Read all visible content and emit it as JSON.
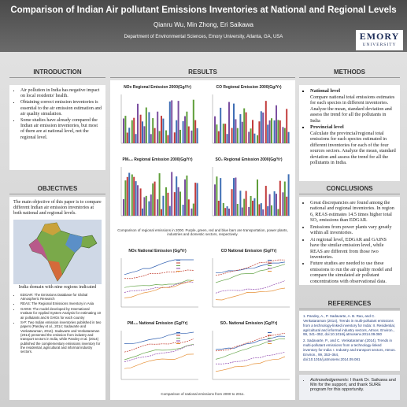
{
  "header": {
    "title": "Comparison of Indian Air pollutant Emissions Inventories at National and Regional Levels",
    "authors": "Qianru Wu, Min Zhong, Eri Saikawa",
    "affiliation": "Department of Environmental Sciences, Emory University, Atlanta, GA, USA",
    "logo": [
      "EMORY",
      "UNIVERSITY"
    ]
  },
  "introduction": {
    "heading": "INTRODUCTION",
    "bullets": [
      "Air pollution in India has negative impact on local residents' health.",
      "Obtaining correct emission inventories is essential to the air emission estimation and air quality simulation.",
      "Some studies have already compared the Indian air emission inventories, but most of them are at national level, not the regional level."
    ]
  },
  "objectives": {
    "heading": "OBJECTIVES",
    "text": "The main objective of this paper is to compare different Indian air emission inventories at both national and regional levels.",
    "map_caption": "India domain with nine regions indicated",
    "bullets": [
      "EDGAR: The Emissions Database for Global Atmospheric Research",
      "REAS: The Regional Emissions Inventory in Asia",
      "GAINS: The model developed by International Institute for Applied System Analysis for estimating 10 air pollutants and 6 GHGs for each country",
      "S-P: Two Indian emission inventories published in two papers (Pandey et al., 2014; Sadavarte and Venkataraman, 2014). Sadavarte and Venkataraman (2014) presented the emission from industry and transport sectors in India, while Pandey et al. (2014) published the complementary emissions inventory for the residential, agricultural and informal industry sectors."
    ]
  },
  "results": {
    "heading": "RESULTS",
    "regional_titles": [
      "NOx Regional Emission 2000(Gg/Yr)",
      "CO Regional Emission 2000(Gg/Yr)",
      "PM₂.₅ Regional Emission 2000(Gg/Yr)",
      "SO₂ Regional Emission 2000(Gg/Yr)"
    ],
    "regional_caption": "Comparison of regional emissions in 2000. Purple, green, red and blue bars are transportation, power plants, industries and domestic sectors, respectively.",
    "national_titles": [
      "NOx National Emission (Gg/Yr)",
      "CO National Emission (Gg/Yr)",
      "PM₂.₅ National Emission (Gg/Yr)",
      "SO₂ National Emission (Gg/Yr)"
    ],
    "national_caption": "Comparison of national emissions from 2000 to 2011."
  },
  "methods": {
    "heading": "METHODS",
    "national_heading": "National level",
    "national_text": "Compare national total emissions estimates for each species in different inventories. Analyze the mean, standard deviation and assess the trend for all the pollutants in India",
    "provincial_heading": "Provincial level",
    "provincial_text": "Calculate the provincial/regional total emissions for each species estimated in different inventories for each of the four sources sectors. Analyze the mean, standard deviation and assess the trend for all the pollutants in India."
  },
  "conclusions": {
    "heading": "CONCLUSIONS",
    "bullets": [
      "Great discrepancies are found among the national and regional inventories. In region 6, REAS estimates 14.5 times higher total SO₂ emissions than EDGAR.",
      "Emissions from power plants vary greatly within all inventories.",
      "At regional level, EDGAR and GAINS have the similar emission level, while REAS are different from those two inventories.",
      "Future studies are needed to use these emissions to run the air quality model and compare the simulated air pollutant concentrations with observational data."
    ]
  },
  "references": {
    "heading": "REFERENCES",
    "items": [
      "1. Pandey, A., P. Sadavarte, A. B. Rao, and C. Venkataraman (2014), Trends in multi-pollutant emissions from a technology-linked inventory for India: II. Residential, agricultural and informal industry sectors, Atmos. Environ., 99, 341–352, doi:10.1016/j.atmosenv.2014.09.080",
      "2. Sadavarte, P., and C. Venkataraman (2014), Trends in multi-pollutant emissions from a technology-linked inventory for India: I. Industry and transport sectors, Atmos. Environ., 99, 353–364, doi:10.1016/j.atmosenv.2014.09.081"
    ]
  },
  "acknowledgements": {
    "label": "Acknowledgements:",
    "text": "I thank Dr. Saikawa and Min for the support, and thank SURE program for this opportunity."
  }
}
